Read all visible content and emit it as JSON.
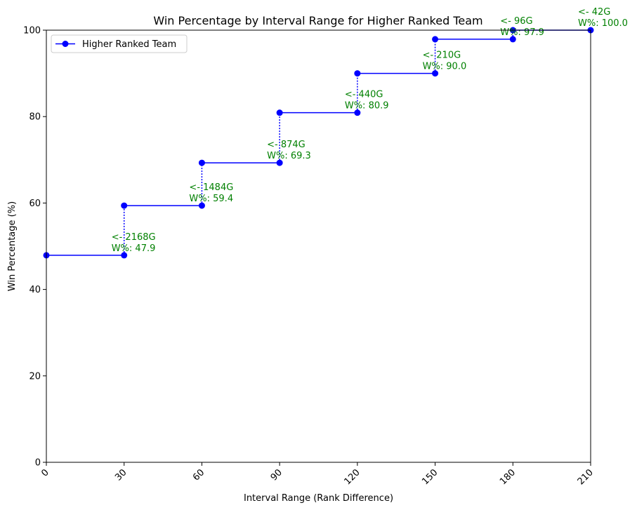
{
  "chart_data": {
    "type": "line",
    "title": "Win Percentage by Interval Range for Higher Ranked Team",
    "xlabel": "Interval Range (Rank Difference)",
    "ylabel": "Win Percentage (%)",
    "xlim": [
      0,
      210
    ],
    "ylim": [
      0,
      100
    ],
    "xticks": [
      0,
      30,
      60,
      90,
      120,
      150,
      180,
      210
    ],
    "xtick_labels": [
      "0",
      "30",
      "60",
      "90",
      "120",
      "150",
      "180",
      "210"
    ],
    "xtick_rotation_deg": 45,
    "yticks": [
      0,
      20,
      40,
      60,
      80,
      100
    ],
    "ytick_labels": [
      "0",
      "20",
      "40",
      "60",
      "80",
      "100"
    ],
    "grid": false,
    "legend_position": "top-left",
    "series": [
      {
        "name": "Higher Ranked Team",
        "color": "#0000ff",
        "marker": "circle",
        "steps": [
          {
            "x_start": 0,
            "x_end": 30,
            "y": 47.9
          },
          {
            "x_start": 30,
            "x_end": 60,
            "y": 59.4
          },
          {
            "x_start": 60,
            "x_end": 90,
            "y": 69.3
          },
          {
            "x_start": 90,
            "x_end": 120,
            "y": 80.9
          },
          {
            "x_start": 120,
            "x_end": 150,
            "y": 90.0
          },
          {
            "x_start": 150,
            "x_end": 180,
            "y": 97.9
          },
          {
            "x_start": 180,
            "x_end": 210,
            "y": 100.0
          }
        ]
      }
    ],
    "annotations": [
      {
        "x": 30,
        "y": 47.9,
        "line1": "<- 2168G",
        "line2": "W%: 47.9"
      },
      {
        "x": 60,
        "y": 59.4,
        "line1": "<- 1484G",
        "line2": "W%: 59.4"
      },
      {
        "x": 90,
        "y": 69.3,
        "line1": "<- 874G",
        "line2": "W%: 69.3"
      },
      {
        "x": 120,
        "y": 80.9,
        "line1": "<- 440G",
        "line2": "W%: 80.9"
      },
      {
        "x": 150,
        "y": 90.0,
        "line1": "<- 210G",
        "line2": "W%: 90.0"
      },
      {
        "x": 180,
        "y": 97.9,
        "line1": "<- 96G",
        "line2": "W%: 97.9"
      },
      {
        "x": 210,
        "y": 100.0,
        "line1": "<- 42G",
        "line2": "W%: 100.0"
      }
    ],
    "annotation_color": "#008000"
  }
}
